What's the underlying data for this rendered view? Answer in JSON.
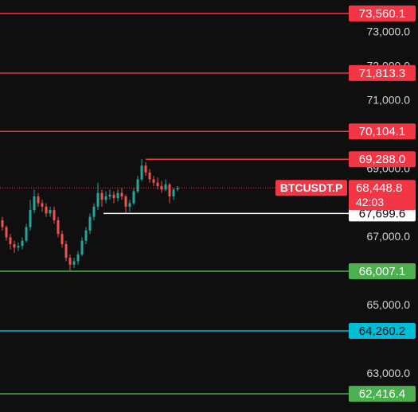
{
  "chart_data": {
    "type": "candlestick",
    "ylim": [
      61884,
      73953
    ],
    "yticks": [
      {
        "value": 73000,
        "label": "73,000.0"
      },
      {
        "value": 72000,
        "label": "72,000.0"
      },
      {
        "value": 71000,
        "label": "71,000.0"
      },
      {
        "value": 69000,
        "label": "69,000.0"
      },
      {
        "value": 67000,
        "label": "67,000.0"
      },
      {
        "value": 65000,
        "label": "65,000.0"
      },
      {
        "value": 63000,
        "label": "63,000.0"
      }
    ],
    "up_color": "#26a69a",
    "down_color": "#ef5350",
    "candles": {
      "open": [
        67500,
        67300,
        67000,
        66800,
        66700,
        66750,
        66900,
        67300,
        67800,
        68200,
        68000,
        67900,
        67700,
        67800,
        67500,
        67100,
        66800,
        66400,
        66200,
        66300,
        66500,
        66900,
        67200,
        67600,
        67900,
        68300,
        68100,
        68200,
        68250,
        68150,
        68300,
        68200,
        67900,
        68000,
        68350,
        68700,
        69100,
        68900,
        68700,
        68600,
        68500,
        68400,
        68550,
        68200,
        68400
      ],
      "high": [
        67600,
        67350,
        67100,
        66900,
        66850,
        67000,
        67400,
        68100,
        68400,
        68300,
        68100,
        68000,
        67900,
        67900,
        67600,
        67200,
        66900,
        66500,
        66400,
        66600,
        67000,
        67300,
        67700,
        68000,
        68600,
        68400,
        68350,
        68400,
        68350,
        68400,
        68450,
        68250,
        68100,
        68450,
        68800,
        69290,
        69200,
        69000,
        68800,
        68750,
        68650,
        68700,
        68600,
        68450,
        68500
      ],
      "low": [
        67200,
        66900,
        66650,
        66550,
        66600,
        66650,
        66850,
        67200,
        67700,
        67900,
        67750,
        67600,
        67600,
        67400,
        67000,
        66700,
        66300,
        66010,
        66100,
        66200,
        66450,
        66800,
        67100,
        67500,
        67800,
        67900,
        68000,
        68100,
        68000,
        68050,
        68100,
        67700,
        67750,
        67950,
        68300,
        68650,
        68800,
        68600,
        68500,
        68400,
        68300,
        68350,
        68000,
        68100,
        68350
      ],
      "close": [
        67300,
        67000,
        66800,
        66700,
        66750,
        66900,
        67300,
        67800,
        68200,
        68000,
        67900,
        67700,
        67800,
        67500,
        67100,
        66800,
        66400,
        66200,
        66300,
        66500,
        66900,
        67200,
        67600,
        67900,
        68300,
        68100,
        68200,
        68250,
        68150,
        68300,
        68200,
        67900,
        68000,
        68350,
        68700,
        69100,
        68900,
        68700,
        68600,
        68500,
        68400,
        68550,
        68200,
        68400,
        68450
      ]
    },
    "levels": [
      {
        "value": 73560.1,
        "label": "73,560.1",
        "color": "#f23645",
        "text_color": "#ffffff"
      },
      {
        "value": 71813.3,
        "label": "71,813.3",
        "color": "#f23645",
        "text_color": "#ffffff"
      },
      {
        "value": 70104.1,
        "label": "70,104.1",
        "color": "#f23645",
        "text_color": "#ffffff"
      },
      {
        "value": 69288.0,
        "label": "69,288.0",
        "color": "#f23645",
        "text_color": "#ffffff"
      },
      {
        "value": 67699.6,
        "label": "67,699.6",
        "color": "#ffffff",
        "text_color": "#000000"
      },
      {
        "value": 66007.1,
        "label": "66,007.1",
        "color": "#4caf50",
        "text_color": "#ffffff"
      },
      {
        "value": 64260.2,
        "label": "64,260.2",
        "color": "#00bcd4",
        "text_color": "#131722"
      },
      {
        "value": 62416.4,
        "label": "62,416.4",
        "color": "#4caf50",
        "text_color": "#ffffff"
      }
    ],
    "current": {
      "symbol": "BTCUSDT.P",
      "value": 68448.8,
      "label": "68,448.8",
      "countdown": "42:03",
      "color": "#f23645"
    }
  }
}
